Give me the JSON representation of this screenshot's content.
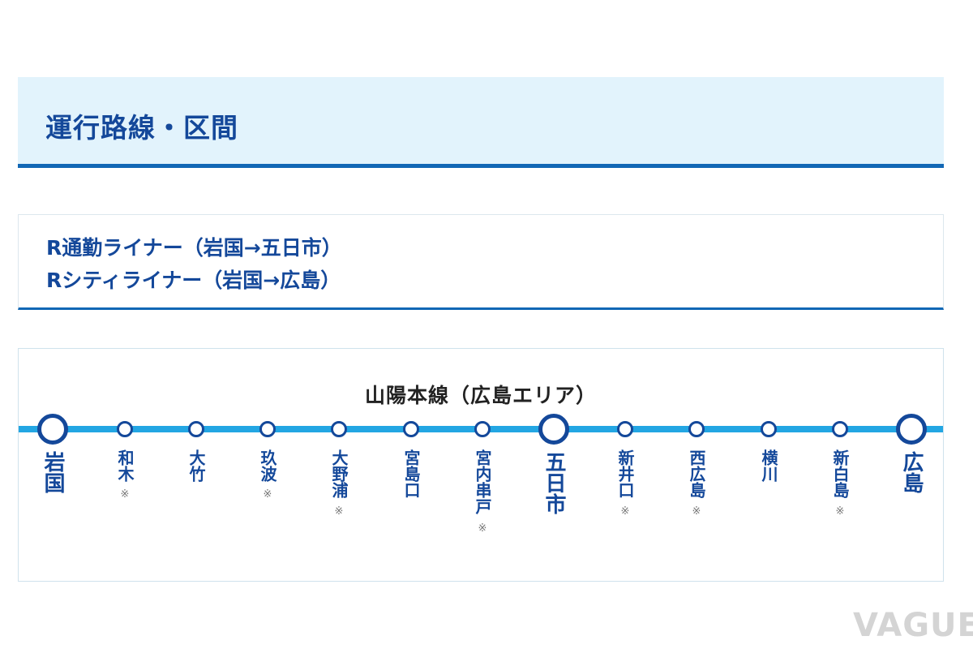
{
  "header": {
    "title": "運行路線・区間"
  },
  "routes": [
    "R通勤ライナー（岩国→五日市）",
    "Rシティライナー（岩国→広島）"
  ],
  "map": {
    "line_name": "山陽本線（広島エリア）",
    "note_mark": "※",
    "stations": [
      {
        "name": "岩国",
        "major": true,
        "note": ""
      },
      {
        "name": "和木",
        "major": false,
        "note": "※"
      },
      {
        "name": "大竹",
        "major": false,
        "note": ""
      },
      {
        "name": "玖波",
        "major": false,
        "note": "※"
      },
      {
        "name": "大野浦",
        "major": false,
        "note": "※"
      },
      {
        "name": "宮島口",
        "major": false,
        "note": ""
      },
      {
        "name": "宮内串戸",
        "major": false,
        "note": "※"
      },
      {
        "name": "五日市",
        "major": true,
        "note": ""
      },
      {
        "name": "新井口",
        "major": false,
        "note": "※"
      },
      {
        "name": "西広島",
        "major": false,
        "note": "※"
      },
      {
        "name": "横川",
        "major": false,
        "note": ""
      },
      {
        "name": "新白島",
        "major": false,
        "note": "※"
      },
      {
        "name": "広島",
        "major": true,
        "note": ""
      }
    ]
  },
  "watermark": "VAGUE",
  "colors": {
    "primary": "#14489a",
    "accent_line": "#23a6e3",
    "header_bg": "#e2f3fc",
    "rule": "#1167b5"
  }
}
